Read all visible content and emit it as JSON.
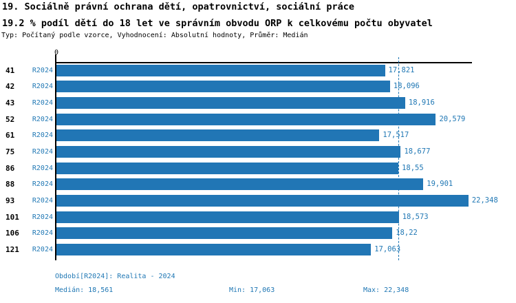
{
  "header": {
    "title_line1": "19. Sociálně právní ochrana dětí, opatrovnictví, sociální práce",
    "title_line2": "19.2 % podíl dětí do 18 let ve správním obvodu ORP k celkovému počtu obyvatel",
    "meta_line": "Typ: Počítaný podle vzorce, Vyhodnocení: Absolutní hodnoty, Průměr: Medián"
  },
  "colors": {
    "bar": "#2176b5",
    "blue_text": "#1f77b4",
    "axis": "#000000"
  },
  "chart_data": {
    "type": "bar",
    "orientation": "horizontal",
    "title": "19.2 % podíl dětí do 18 let ve správním obvodu ORP k celkovému počtu obyvatel",
    "series_label": "R2024",
    "categories": [
      "41",
      "42",
      "43",
      "52",
      "61",
      "75",
      "86",
      "88",
      "93",
      "101",
      "106",
      "121"
    ],
    "values": [
      17821,
      18096,
      18916,
      20579,
      17517,
      18677,
      18550,
      19901,
      22348,
      18573,
      18220,
      17063
    ],
    "value_labels": [
      "17,821",
      "18,096",
      "18,916",
      "20,579",
      "17,517",
      "18,677",
      "18,55",
      "19,901",
      "22,348",
      "18,573",
      "18,22",
      "17,063"
    ],
    "x_axis": {
      "zero_label": "0",
      "xmin": 0,
      "xmax": 22540
    },
    "median_value": 18561,
    "grid": false,
    "legend_position": "none"
  },
  "footer": {
    "period": "Období[R2024]: Realita - 2024",
    "median": "Medián: 18,561",
    "min": "Min: 17,063",
    "max": "Max: 22,348"
  }
}
